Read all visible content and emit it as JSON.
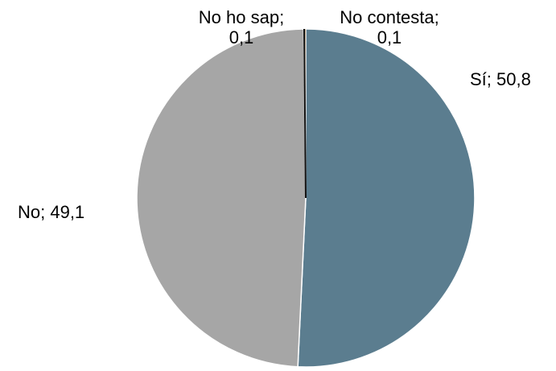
{
  "chart_data": {
    "type": "pie",
    "title": "",
    "start_angle_deg": 0,
    "direction": "clockwise",
    "slices": [
      {
        "label": "Sí",
        "value": 50.8,
        "label_text": [
          "Sí; 50,8"
        ],
        "color": "#5b7d8f"
      },
      {
        "label": "No",
        "value": 49.1,
        "label_text": [
          "No; 49,1"
        ],
        "color": "#a6a6a6"
      },
      {
        "label": "No ho sap",
        "value": 0.1,
        "label_text": [
          "No ho sap;",
          "0,1"
        ],
        "color": "#111111"
      },
      {
        "label": "No contesta",
        "value": 0.1,
        "label_text": [
          "No contesta;",
          "0,1"
        ],
        "color": "#9a7a4e"
      }
    ],
    "legend": "none",
    "slice_border_color": "#ffffff"
  }
}
